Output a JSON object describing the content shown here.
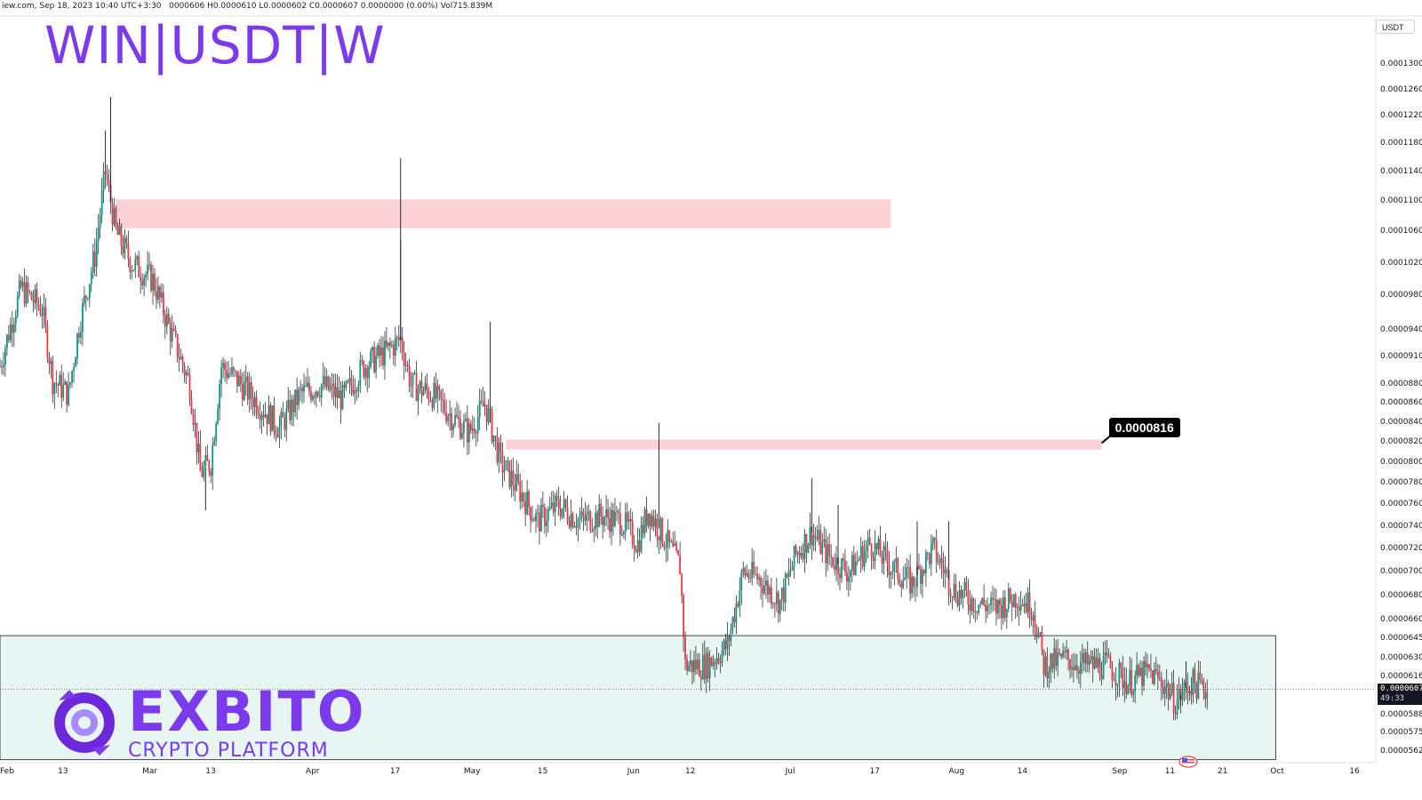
{
  "header": {
    "info": "iew.com, Sep 18, 2023 10:40 UTC+3:30",
    "ohlc": "0000606  H0.0000610  L0.0000602  C0.0000607  0.0000000 (0.00%)  Vol715.839M"
  },
  "title": "WIN|USDT|W",
  "currency_button": "USDT",
  "callout_label": "0.0000816",
  "last_price": {
    "value": "0.0000607",
    "countdown": "49:33"
  },
  "logo": {
    "name": "EXBITO",
    "subtitle": "CRYPTO PLATFORM"
  },
  "colors": {
    "up": "#089981",
    "down": "#f23645",
    "wick": "#131722",
    "resistance_zone": "#fcd1d6",
    "support_zone": "#e8f6f3",
    "brand": "#7c3aed"
  },
  "chart_data": {
    "type": "candlestick",
    "title": "WIN|USDT|W",
    "y_axis": {
      "scale": "log",
      "range": [
        5.55e-05,
        0.000135
      ],
      "ticks": [
        "0.0001300",
        "0.0001260",
        "0.0001220",
        "0.0001180",
        "0.0001140",
        "0.0001100",
        "0.0001060",
        "0.0001020",
        "0.0000980",
        "0.0000940",
        "0.0000910",
        "0.0000880",
        "0.0000860",
        "0.0000840",
        "0.0000820",
        "0.0000800",
        "0.0000780",
        "0.0000760",
        "0.0000740",
        "0.0000720",
        "0.0000700",
        "0.0000680",
        "0.0000660",
        "0.0000645",
        "0.0000630",
        "0.0000616",
        "0.0000588",
        "0.0000575",
        "0.0000562"
      ]
    },
    "x_axis": {
      "range": [
        "2023-02-01",
        "2023-10-20"
      ],
      "ticks": [
        {
          "label": "Feb",
          "date": "2023-02-01"
        },
        {
          "label": "13",
          "date": "2023-02-13"
        },
        {
          "label": "Mar",
          "date": "2023-03-01"
        },
        {
          "label": "13",
          "date": "2023-03-13"
        },
        {
          "label": "Apr",
          "date": "2023-04-01"
        },
        {
          "label": "17",
          "date": "2023-04-17"
        },
        {
          "label": "May",
          "date": "2023-05-01"
        },
        {
          "label": "15",
          "date": "2023-05-15"
        },
        {
          "label": "Jun",
          "date": "2023-06-01"
        },
        {
          "label": "12",
          "date": "2023-06-12"
        },
        {
          "label": "Jul",
          "date": "2023-07-01"
        },
        {
          "label": "17",
          "date": "2023-07-17"
        },
        {
          "label": "Aug",
          "date": "2023-08-01"
        },
        {
          "label": "14",
          "date": "2023-08-14"
        },
        {
          "label": "Sep",
          "date": "2023-09-01"
        },
        {
          "label": "11",
          "date": "2023-09-11"
        },
        {
          "label": "21",
          "date": "2023-09-21"
        },
        {
          "label": "Oct",
          "date": "2023-10-01"
        },
        {
          "label": "16",
          "date": "2023-10-16"
        }
      ]
    },
    "candle_interval_hours": 8,
    "price_path": [
      [
        "2023-02-01",
        9e-05
      ],
      [
        "2023-02-05",
        9.9e-05
      ],
      [
        "2023-02-09",
        9.65e-05
      ],
      [
        "2023-02-11",
        8.85e-05
      ],
      [
        "2023-02-14",
        8.7e-05
      ],
      [
        "2023-02-16",
        9.45e-05
      ],
      [
        "2023-02-19",
        0.000103
      ],
      [
        "2023-02-21",
        0.000114
      ],
      [
        "2023-02-23",
        0.000106
      ],
      [
        "2023-02-26",
        0.000102
      ],
      [
        "2023-03-02",
        0.0001
      ],
      [
        "2023-03-05",
        9.45e-05
      ],
      [
        "2023-03-09",
        8.8e-05
      ],
      [
        "2023-03-11",
        7.9e-05
      ],
      [
        "2023-03-13",
        8e-05
      ],
      [
        "2023-03-15",
        9e-05
      ],
      [
        "2023-03-18",
        8.85e-05
      ],
      [
        "2023-03-22",
        8.6e-05
      ],
      [
        "2023-03-26",
        8.35e-05
      ],
      [
        "2023-03-30",
        8.7e-05
      ],
      [
        "2023-04-03",
        8.8e-05
      ],
      [
        "2023-04-07",
        8.65e-05
      ],
      [
        "2023-04-11",
        9e-05
      ],
      [
        "2023-04-15",
        9.15e-05
      ],
      [
        "2023-04-18",
        9.3e-05
      ],
      [
        "2023-04-20",
        8.8e-05
      ],
      [
        "2023-04-24",
        8.7e-05
      ],
      [
        "2023-04-28",
        8.45e-05
      ],
      [
        "2023-05-01",
        8.3e-05
      ],
      [
        "2023-05-04",
        8.6e-05
      ],
      [
        "2023-05-07",
        8e-05
      ],
      [
        "2023-05-11",
        7.7e-05
      ],
      [
        "2023-05-14",
        7.45e-05
      ],
      [
        "2023-05-18",
        7.6e-05
      ],
      [
        "2023-05-22",
        7.45e-05
      ],
      [
        "2023-05-26",
        7.5e-05
      ],
      [
        "2023-05-30",
        7.45e-05
      ],
      [
        "2023-06-02",
        7.25e-05
      ],
      [
        "2023-06-04",
        7.55e-05
      ],
      [
        "2023-06-07",
        7.3e-05
      ],
      [
        "2023-06-10",
        7.05e-05
      ],
      [
        "2023-06-11",
        6.25e-05
      ],
      [
        "2023-06-15",
        6.25e-05
      ],
      [
        "2023-06-19",
        6.4e-05
      ],
      [
        "2023-06-22",
        7e-05
      ],
      [
        "2023-06-25",
        6.95e-05
      ],
      [
        "2023-06-29",
        6.75e-05
      ],
      [
        "2023-07-02",
        7.15e-05
      ],
      [
        "2023-07-05",
        7.35e-05
      ],
      [
        "2023-07-08",
        7.15e-05
      ],
      [
        "2023-07-12",
        7e-05
      ],
      [
        "2023-07-16",
        7.25e-05
      ],
      [
        "2023-07-20",
        7.05e-05
      ],
      [
        "2023-07-24",
        6.9e-05
      ],
      [
        "2023-07-28",
        7.2e-05
      ],
      [
        "2023-08-01",
        6.85e-05
      ],
      [
        "2023-08-05",
        6.75e-05
      ],
      [
        "2023-08-09",
        6.7e-05
      ],
      [
        "2023-08-13",
        6.8e-05
      ],
      [
        "2023-08-16",
        6.7e-05
      ],
      [
        "2023-08-18",
        6.25e-05
      ],
      [
        "2023-08-22",
        6.3e-05
      ],
      [
        "2023-08-26",
        6.25e-05
      ],
      [
        "2023-08-30",
        6.25e-05
      ],
      [
        "2023-09-03",
        6.12e-05
      ],
      [
        "2023-09-07",
        6.2e-05
      ],
      [
        "2023-09-10",
        6.1e-05
      ],
      [
        "2023-09-12",
        5.98e-05
      ],
      [
        "2023-09-15",
        6.12e-05
      ],
      [
        "2023-09-18",
        6.07e-05
      ]
    ],
    "long_wicks": [
      {
        "date": "2023-02-22",
        "high": 0.000125
      },
      {
        "date": "2023-02-21",
        "high": 0.00012
      },
      {
        "date": "2023-03-12",
        "low": 7.55e-05
      },
      {
        "date": "2023-04-18",
        "high": 0.000116
      },
      {
        "date": "2023-04-18",
        "high": 0.000105
      },
      {
        "date": "2023-05-05",
        "high": 9.5e-05
      },
      {
        "date": "2023-06-06",
        "high": 8.4e-05
      },
      {
        "date": "2023-07-05",
        "high": 7.85e-05
      },
      {
        "date": "2023-07-10",
        "high": 7.6e-05
      },
      {
        "date": "2023-07-25",
        "high": 7.45e-05
      },
      {
        "date": "2023-07-31",
        "high": 7.45e-05
      },
      {
        "date": "2023-09-14",
        "high": 6.28e-05
      },
      {
        "date": "2023-09-13",
        "low": 5.95e-05
      }
    ],
    "zones": [
      {
        "type": "resistance",
        "from": "2023-02-23",
        "to": "2023-07-20",
        "top": 0.0001103,
        "bottom": 0.0001065
      },
      {
        "type": "resistance",
        "from": "2023-05-08",
        "to": "2023-08-29",
        "top": 8.23e-05,
        "bottom": 8.13e-05
      },
      {
        "type": "support",
        "from": "2023-02-01",
        "to": "2023-10-01",
        "top": 6.48e-05,
        "bottom": 5.57e-05
      }
    ],
    "callout": {
      "date": "2023-08-29",
      "price": 8.16e-05
    }
  }
}
